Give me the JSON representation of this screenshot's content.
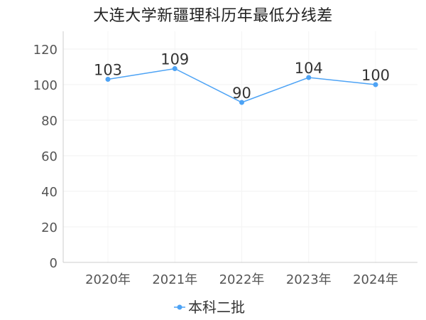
{
  "chart_data": {
    "type": "line",
    "title": "大连大学新疆理科历年最低分线差",
    "categories": [
      "2020年",
      "2021年",
      "2022年",
      "2023年",
      "2024年"
    ],
    "series": [
      {
        "name": "本科二批",
        "values": [
          103,
          109,
          90,
          104,
          100
        ],
        "color": "#4da3f5"
      }
    ],
    "xlabel": "",
    "ylabel": "",
    "ylim": [
      0,
      130
    ],
    "yticks": [
      0,
      20,
      40,
      60,
      80,
      100,
      120
    ],
    "grid": true,
    "legend": "bottom-center",
    "data_labels": true
  }
}
